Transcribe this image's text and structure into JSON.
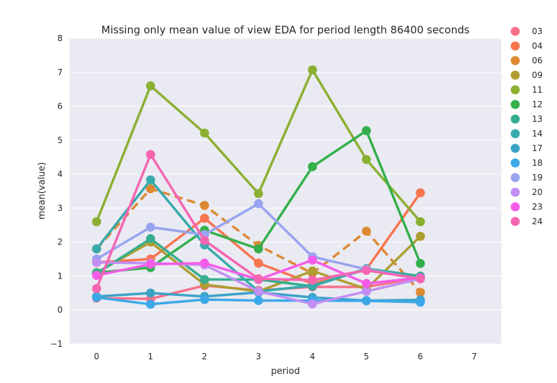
{
  "chart_data": {
    "type": "line",
    "title": "Missing only mean value of view EDA for period length 86400 seconds",
    "xlabel": "period",
    "ylabel": "mean(value)",
    "x": [
      0,
      1,
      2,
      3,
      4,
      5,
      6
    ],
    "xticks": [
      "0",
      "1",
      "2",
      "3",
      "4",
      "5",
      "6",
      "7"
    ],
    "xlim": [
      -0.5,
      7.5
    ],
    "ylim": [
      -1,
      8
    ],
    "yticks": [
      "−1",
      "0",
      "1",
      "2",
      "3",
      "4",
      "5",
      "6",
      "7",
      "8"
    ],
    "grid": true,
    "legend_position": "right",
    "series": [
      {
        "name": "03",
        "color": "#f77189",
        "dashed": false,
        "values": [
          0.35,
          0.33,
          0.72,
          0.58,
          0.68,
          0.68,
          0.95
        ]
      },
      {
        "name": "04",
        "color": "#f7754f",
        "dashed": false,
        "values": [
          1.4,
          1.5,
          2.7,
          1.38,
          0.78,
          1.2,
          3.45
        ]
      },
      {
        "name": "06",
        "color": "#dc8932",
        "dashed": true,
        "values": [
          1.8,
          3.57,
          3.08,
          1.9,
          1.08,
          2.32,
          0.52
        ]
      },
      {
        "name": "09",
        "color": "#ae9d31",
        "dashed": false,
        "values": [
          1.1,
          2.0,
          0.75,
          0.55,
          1.15,
          0.62,
          2.17
        ]
      },
      {
        "name": "11",
        "color": "#8ab031",
        "dashed": false,
        "values": [
          2.6,
          6.6,
          5.21,
          3.43,
          7.07,
          4.43,
          2.6
        ]
      },
      {
        "name": "12",
        "color": "#33b04b",
        "dashed": false,
        "values": [
          1.1,
          1.25,
          2.35,
          1.8,
          4.22,
          5.28,
          1.37
        ]
      },
      {
        "name": "13",
        "color": "#36ad8c",
        "dashed": false,
        "values": [
          1.08,
          2.1,
          0.9,
          0.9,
          0.7,
          1.22,
          1.0
        ]
      },
      {
        "name": "14",
        "color": "#38aaac",
        "dashed": false,
        "values": [
          1.8,
          3.83,
          1.92,
          0.55,
          0.72,
          1.2,
          0.95
        ]
      },
      {
        "name": "17",
        "color": "#3ba3c6",
        "dashed": false,
        "values": [
          0.4,
          0.5,
          0.4,
          0.52,
          0.37,
          0.28,
          0.3
        ]
      },
      {
        "name": "18",
        "color": "#3ca8e8",
        "dashed": false,
        "values": [
          0.37,
          0.17,
          0.31,
          0.28,
          0.28,
          0.27,
          0.23
        ]
      },
      {
        "name": "19",
        "color": "#98a4f0",
        "dashed": false,
        "values": [
          1.5,
          2.44,
          2.22,
          3.13,
          1.57,
          1.2,
          0.92
        ]
      },
      {
        "name": "20",
        "color": "#c28ef4",
        "dashed": false,
        "values": [
          1.4,
          1.38,
          1.33,
          0.55,
          0.18,
          0.55,
          0.92
        ]
      },
      {
        "name": "23",
        "color": "#f45ce8",
        "dashed": false,
        "values": [
          1.02,
          1.35,
          1.38,
          0.9,
          1.47,
          0.78,
          0.95
        ]
      },
      {
        "name": "24",
        "color": "#f565b1",
        "dashed": false,
        "values": [
          0.63,
          4.58,
          2.05,
          0.92,
          0.88,
          1.17,
          0.92
        ]
      }
    ]
  }
}
